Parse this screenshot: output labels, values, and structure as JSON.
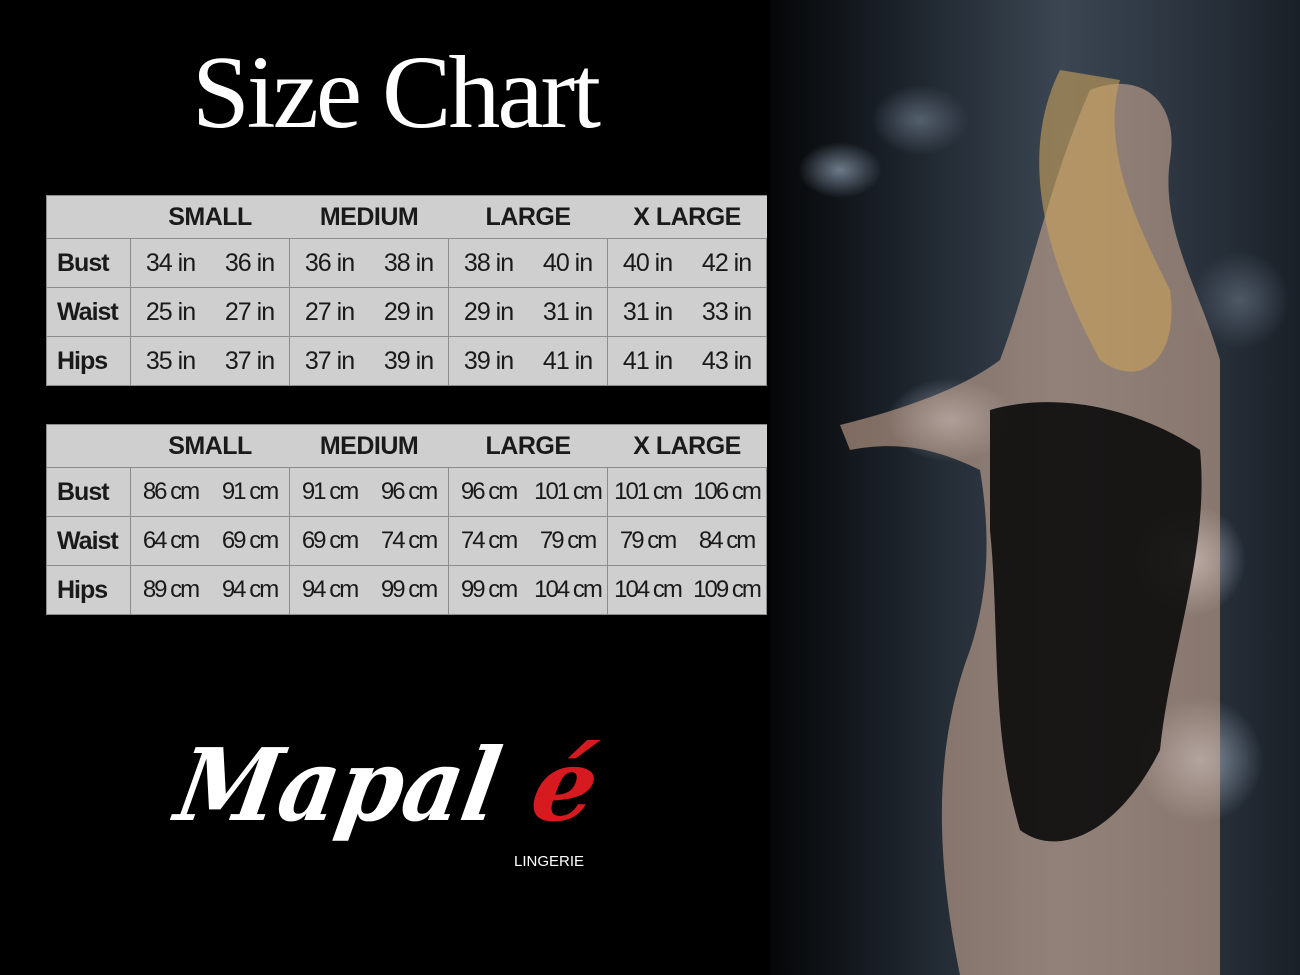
{
  "title": "Size Chart",
  "sizes": [
    "SMALL",
    "MEDIUM",
    "LARGE",
    "X LARGE"
  ],
  "inches_table": {
    "rows": [
      {
        "label": "Bust",
        "values": [
          [
            "34 in",
            "36 in"
          ],
          [
            "36 in",
            "38 in"
          ],
          [
            "38 in",
            "40 in"
          ],
          [
            "40 in",
            "42 in"
          ]
        ]
      },
      {
        "label": "Waist",
        "values": [
          [
            "25 in",
            "27 in"
          ],
          [
            "27 in",
            "29 in"
          ],
          [
            "29 in",
            "31 in"
          ],
          [
            "31 in",
            "33 in"
          ]
        ]
      },
      {
        "label": "Hips",
        "values": [
          [
            "35 in",
            "37 in"
          ],
          [
            "37 in",
            "39 in"
          ],
          [
            "39 in",
            "41 in"
          ],
          [
            "41 in",
            "43 in"
          ]
        ]
      }
    ]
  },
  "cm_table": {
    "rows": [
      {
        "label": "Bust",
        "values": [
          [
            "86 cm",
            "91 cm"
          ],
          [
            "91 cm",
            "96 cm"
          ],
          [
            "96 cm",
            "101 cm"
          ],
          [
            "101 cm",
            "106 cm"
          ]
        ]
      },
      {
        "label": "Waist",
        "values": [
          [
            "64 cm",
            "69 cm"
          ],
          [
            "69 cm",
            "74 cm"
          ],
          [
            "74 cm",
            "79 cm"
          ],
          [
            "79 cm",
            "84 cm"
          ]
        ]
      },
      {
        "label": "Hips",
        "values": [
          [
            "89 cm",
            "94 cm"
          ],
          [
            "94 cm",
            "99 cm"
          ],
          [
            "99 cm",
            "104 cm"
          ],
          [
            "104 cm",
            "109 cm"
          ]
        ]
      }
    ]
  },
  "logo": {
    "brand": "Mapalé",
    "tagline": "LINGERIE",
    "accent_color": "#d71920"
  },
  "colors": {
    "background": "#000000",
    "table_bg": "#cfcfcf",
    "table_text": "#1a1a1a"
  }
}
